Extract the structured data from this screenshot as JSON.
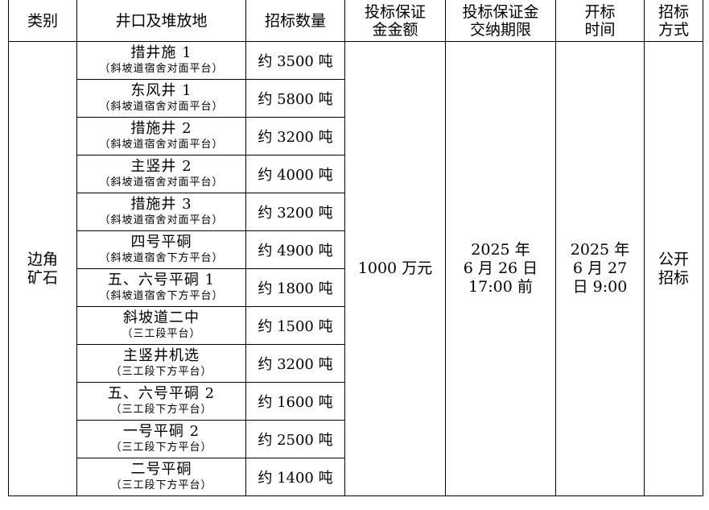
{
  "headers": [
    "类别",
    "井口及堆放地",
    "招标数量",
    "投标保证\n金金额",
    "投标保证金\n交纳期限",
    "开标\n时间",
    "招标\n方式"
  ],
  "category": "边角\n矿石",
  "deposit_amount": "1000 万元",
  "deposit_deadline": "2025 年\n6 月 26 日\n17:00 前",
  "opening_time": "2025 年\n6 月 27\n日 9:00",
  "method": "公开\n招标",
  "rows": [
    {
      "name": "措井施 1",
      "location": "（斜坡道宿舍对面平台）",
      "quantity": "约 3500 吨"
    },
    {
      "name": "东风井 1",
      "location": "（斜坡道宿舍对面平台）",
      "quantity": "约 5800 吨"
    },
    {
      "name": "措施井 2",
      "location": "（斜坡道宿舍对面平台）",
      "quantity": "约 3200 吨"
    },
    {
      "name": "主竖井 2",
      "location": "（斜坡道宿舍对面平台）",
      "quantity": "约 4000 吨"
    },
    {
      "name": "措施井 3",
      "location": "（斜坡道宿舍对面平台）",
      "quantity": "约 3200 吨"
    },
    {
      "name": "四号平硐",
      "location": "（斜坡道宿舍下方平台）",
      "quantity": "约 4900 吨"
    },
    {
      "name": "五、六号平硐 1",
      "location": "（斜坡道宿舍下方平台）",
      "quantity": "约 1800 吨"
    },
    {
      "name": "斜坡道二中",
      "location": "（三工段平台）",
      "quantity": "约 1500 吨"
    },
    {
      "name": "主竖井机选",
      "location": "（三工段下方平台）",
      "quantity": "约 3200 吨"
    },
    {
      "name": "五、六号平硐 2",
      "location": "（三工段下方平台）",
      "quantity": "约 1600 吨"
    },
    {
      "name": "一号平硐 2",
      "location": "（三工段下方平台）",
      "quantity": "约 2500 吨"
    },
    {
      "name": "二号平硐",
      "location": "（三工段下方平台）",
      "quantity": "约 1400 吨"
    }
  ]
}
